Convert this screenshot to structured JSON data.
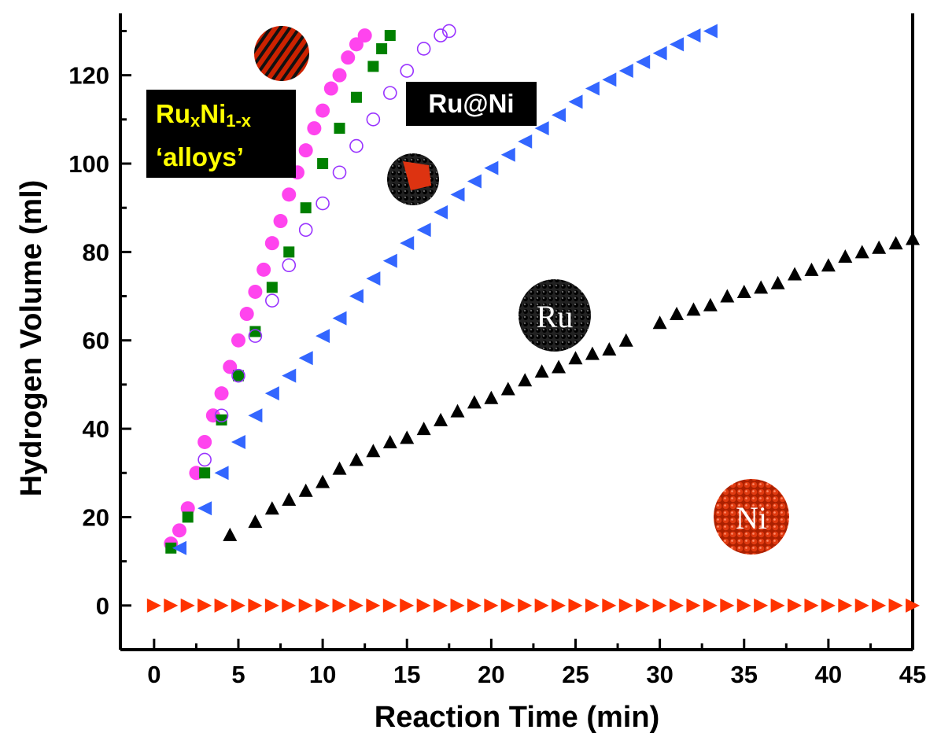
{
  "chart_data": {
    "type": "scatter",
    "xlabel": "Reaction Time (min)",
    "ylabel": "Hydrogen Volume (ml)",
    "xlim": [
      -2,
      45
    ],
    "ylim": [
      -10,
      134
    ],
    "xticks": [
      "0",
      "5",
      "10",
      "15",
      "20",
      "25",
      "30",
      "35",
      "40",
      "45"
    ],
    "yticks": [
      "0",
      "20",
      "40",
      "60",
      "80",
      "100",
      "120"
    ],
    "grid": false,
    "legend": "none",
    "series": [
      {
        "marker": "circle-filled",
        "color": "#ff44ee",
        "points": [
          [
            1,
            14
          ],
          [
            1.5,
            17
          ],
          [
            2,
            22
          ],
          [
            2.5,
            30
          ],
          [
            3,
            37
          ],
          [
            3.5,
            43
          ],
          [
            4,
            48
          ],
          [
            4.5,
            54
          ],
          [
            5,
            60
          ],
          [
            5.5,
            66
          ],
          [
            6,
            71
          ],
          [
            6.5,
            76
          ],
          [
            7,
            82
          ],
          [
            7.5,
            87
          ],
          [
            8,
            93
          ],
          [
            8.5,
            98
          ],
          [
            9,
            103
          ],
          [
            9.5,
            108
          ],
          [
            10,
            112
          ],
          [
            10.5,
            117
          ],
          [
            11,
            120
          ],
          [
            11.5,
            124
          ],
          [
            12,
            127
          ],
          [
            12.5,
            129
          ]
        ]
      },
      {
        "marker": "square-filled",
        "color": "#008000",
        "points": [
          [
            1,
            13
          ],
          [
            2,
            20
          ],
          [
            3,
            30
          ],
          [
            4,
            42
          ],
          [
            5,
            52
          ],
          [
            6,
            62
          ],
          [
            7,
            72
          ],
          [
            8,
            80
          ],
          [
            9,
            90
          ],
          [
            10,
            100
          ],
          [
            11,
            108
          ],
          [
            12,
            115
          ],
          [
            13,
            122
          ],
          [
            13.5,
            126
          ],
          [
            14,
            129
          ]
        ]
      },
      {
        "marker": "circle-open",
        "color": "#9933ff",
        "points": [
          [
            3,
            33
          ],
          [
            4,
            43
          ],
          [
            5,
            52
          ],
          [
            6,
            61
          ],
          [
            7,
            69
          ],
          [
            8,
            77
          ],
          [
            9,
            85
          ],
          [
            10,
            91
          ],
          [
            11,
            98
          ],
          [
            12,
            104
          ],
          [
            13,
            110
          ],
          [
            14,
            116
          ],
          [
            15,
            121
          ],
          [
            16,
            126
          ],
          [
            17,
            129
          ],
          [
            17.5,
            130
          ]
        ]
      },
      {
        "marker": "triangle-left-filled",
        "color": "#3366ff",
        "points": [
          [
            1.5,
            13
          ],
          [
            3,
            22
          ],
          [
            4,
            30
          ],
          [
            5,
            37
          ],
          [
            6,
            43
          ],
          [
            7,
            48
          ],
          [
            8,
            52
          ],
          [
            9,
            56
          ],
          [
            10,
            61
          ],
          [
            11,
            65
          ],
          [
            12,
            70
          ],
          [
            13,
            74
          ],
          [
            14,
            78
          ],
          [
            15,
            82
          ],
          [
            16,
            85
          ],
          [
            17,
            89
          ],
          [
            18,
            93
          ],
          [
            19,
            96
          ],
          [
            20,
            99
          ],
          [
            21,
            102
          ],
          [
            22,
            105
          ],
          [
            23,
            108
          ],
          [
            24,
            111
          ],
          [
            25,
            114
          ],
          [
            26,
            117
          ],
          [
            27,
            119
          ],
          [
            28,
            121
          ],
          [
            29,
            123
          ],
          [
            30,
            125
          ],
          [
            31,
            127
          ],
          [
            32,
            129
          ],
          [
            33,
            130
          ]
        ]
      },
      {
        "marker": "triangle-up-filled",
        "color": "#000000",
        "points": [
          [
            4.5,
            16
          ],
          [
            6,
            19
          ],
          [
            7,
            22
          ],
          [
            8,
            24
          ],
          [
            9,
            26
          ],
          [
            10,
            28
          ],
          [
            11,
            31
          ],
          [
            12,
            33
          ],
          [
            13,
            35
          ],
          [
            14,
            37
          ],
          [
            15,
            38
          ],
          [
            16,
            40
          ],
          [
            17,
            42
          ],
          [
            18,
            44
          ],
          [
            19,
            46
          ],
          [
            20,
            47
          ],
          [
            21,
            49
          ],
          [
            22,
            51
          ],
          [
            23,
            53
          ],
          [
            24,
            54
          ],
          [
            25,
            56
          ],
          [
            26,
            57
          ],
          [
            27,
            58
          ],
          [
            28,
            60
          ],
          [
            30,
            64
          ],
          [
            31,
            66
          ],
          [
            32,
            67
          ],
          [
            33,
            68
          ],
          [
            34,
            70
          ],
          [
            35,
            71
          ],
          [
            36,
            72
          ],
          [
            37,
            73
          ],
          [
            38,
            75
          ],
          [
            39,
            76
          ],
          [
            40,
            77
          ],
          [
            41,
            79
          ],
          [
            42,
            80
          ],
          [
            43,
            81
          ],
          [
            44,
            82
          ],
          [
            45,
            83
          ]
        ]
      },
      {
        "marker": "triangle-right-filled",
        "color": "#ff3300",
        "points": [
          [
            0,
            0
          ],
          [
            1,
            0
          ],
          [
            2,
            0
          ],
          [
            3,
            0
          ],
          [
            4,
            0
          ],
          [
            5,
            0
          ],
          [
            6,
            0
          ],
          [
            7,
            0
          ],
          [
            8,
            0
          ],
          [
            9,
            0
          ],
          [
            10,
            0
          ],
          [
            11,
            0
          ],
          [
            12,
            0
          ],
          [
            13,
            0
          ],
          [
            14,
            0
          ],
          [
            15,
            0
          ],
          [
            16,
            0
          ],
          [
            17,
            0
          ],
          [
            18,
            0
          ],
          [
            19,
            0
          ],
          [
            20,
            0
          ],
          [
            21,
            0
          ],
          [
            22,
            0
          ],
          [
            23,
            0
          ],
          [
            24,
            0
          ],
          [
            25,
            0
          ],
          [
            26,
            0
          ],
          [
            27,
            0
          ],
          [
            28,
            0
          ],
          [
            29,
            0
          ],
          [
            30,
            0
          ],
          [
            31,
            0
          ],
          [
            32,
            0
          ],
          [
            33,
            0
          ],
          [
            34,
            0
          ],
          [
            35,
            0
          ],
          [
            36,
            0
          ],
          [
            37,
            0
          ],
          [
            38,
            0
          ],
          [
            39,
            0
          ],
          [
            40,
            0
          ],
          [
            41,
            0
          ],
          [
            42,
            0
          ],
          [
            43,
            0
          ],
          [
            44,
            0
          ],
          [
            45,
            0
          ]
        ]
      }
    ],
    "annotations": {
      "alloy_line1_main": "Ru",
      "alloy_line1_sub1": "x",
      "alloy_line1_mid": "Ni",
      "alloy_line1_sub2": "1-x",
      "alloy_line2": "‘alloys’",
      "core_shell": "Ru@Ni",
      "ru_particle": "Ru",
      "ni_particle": "Ni"
    }
  }
}
